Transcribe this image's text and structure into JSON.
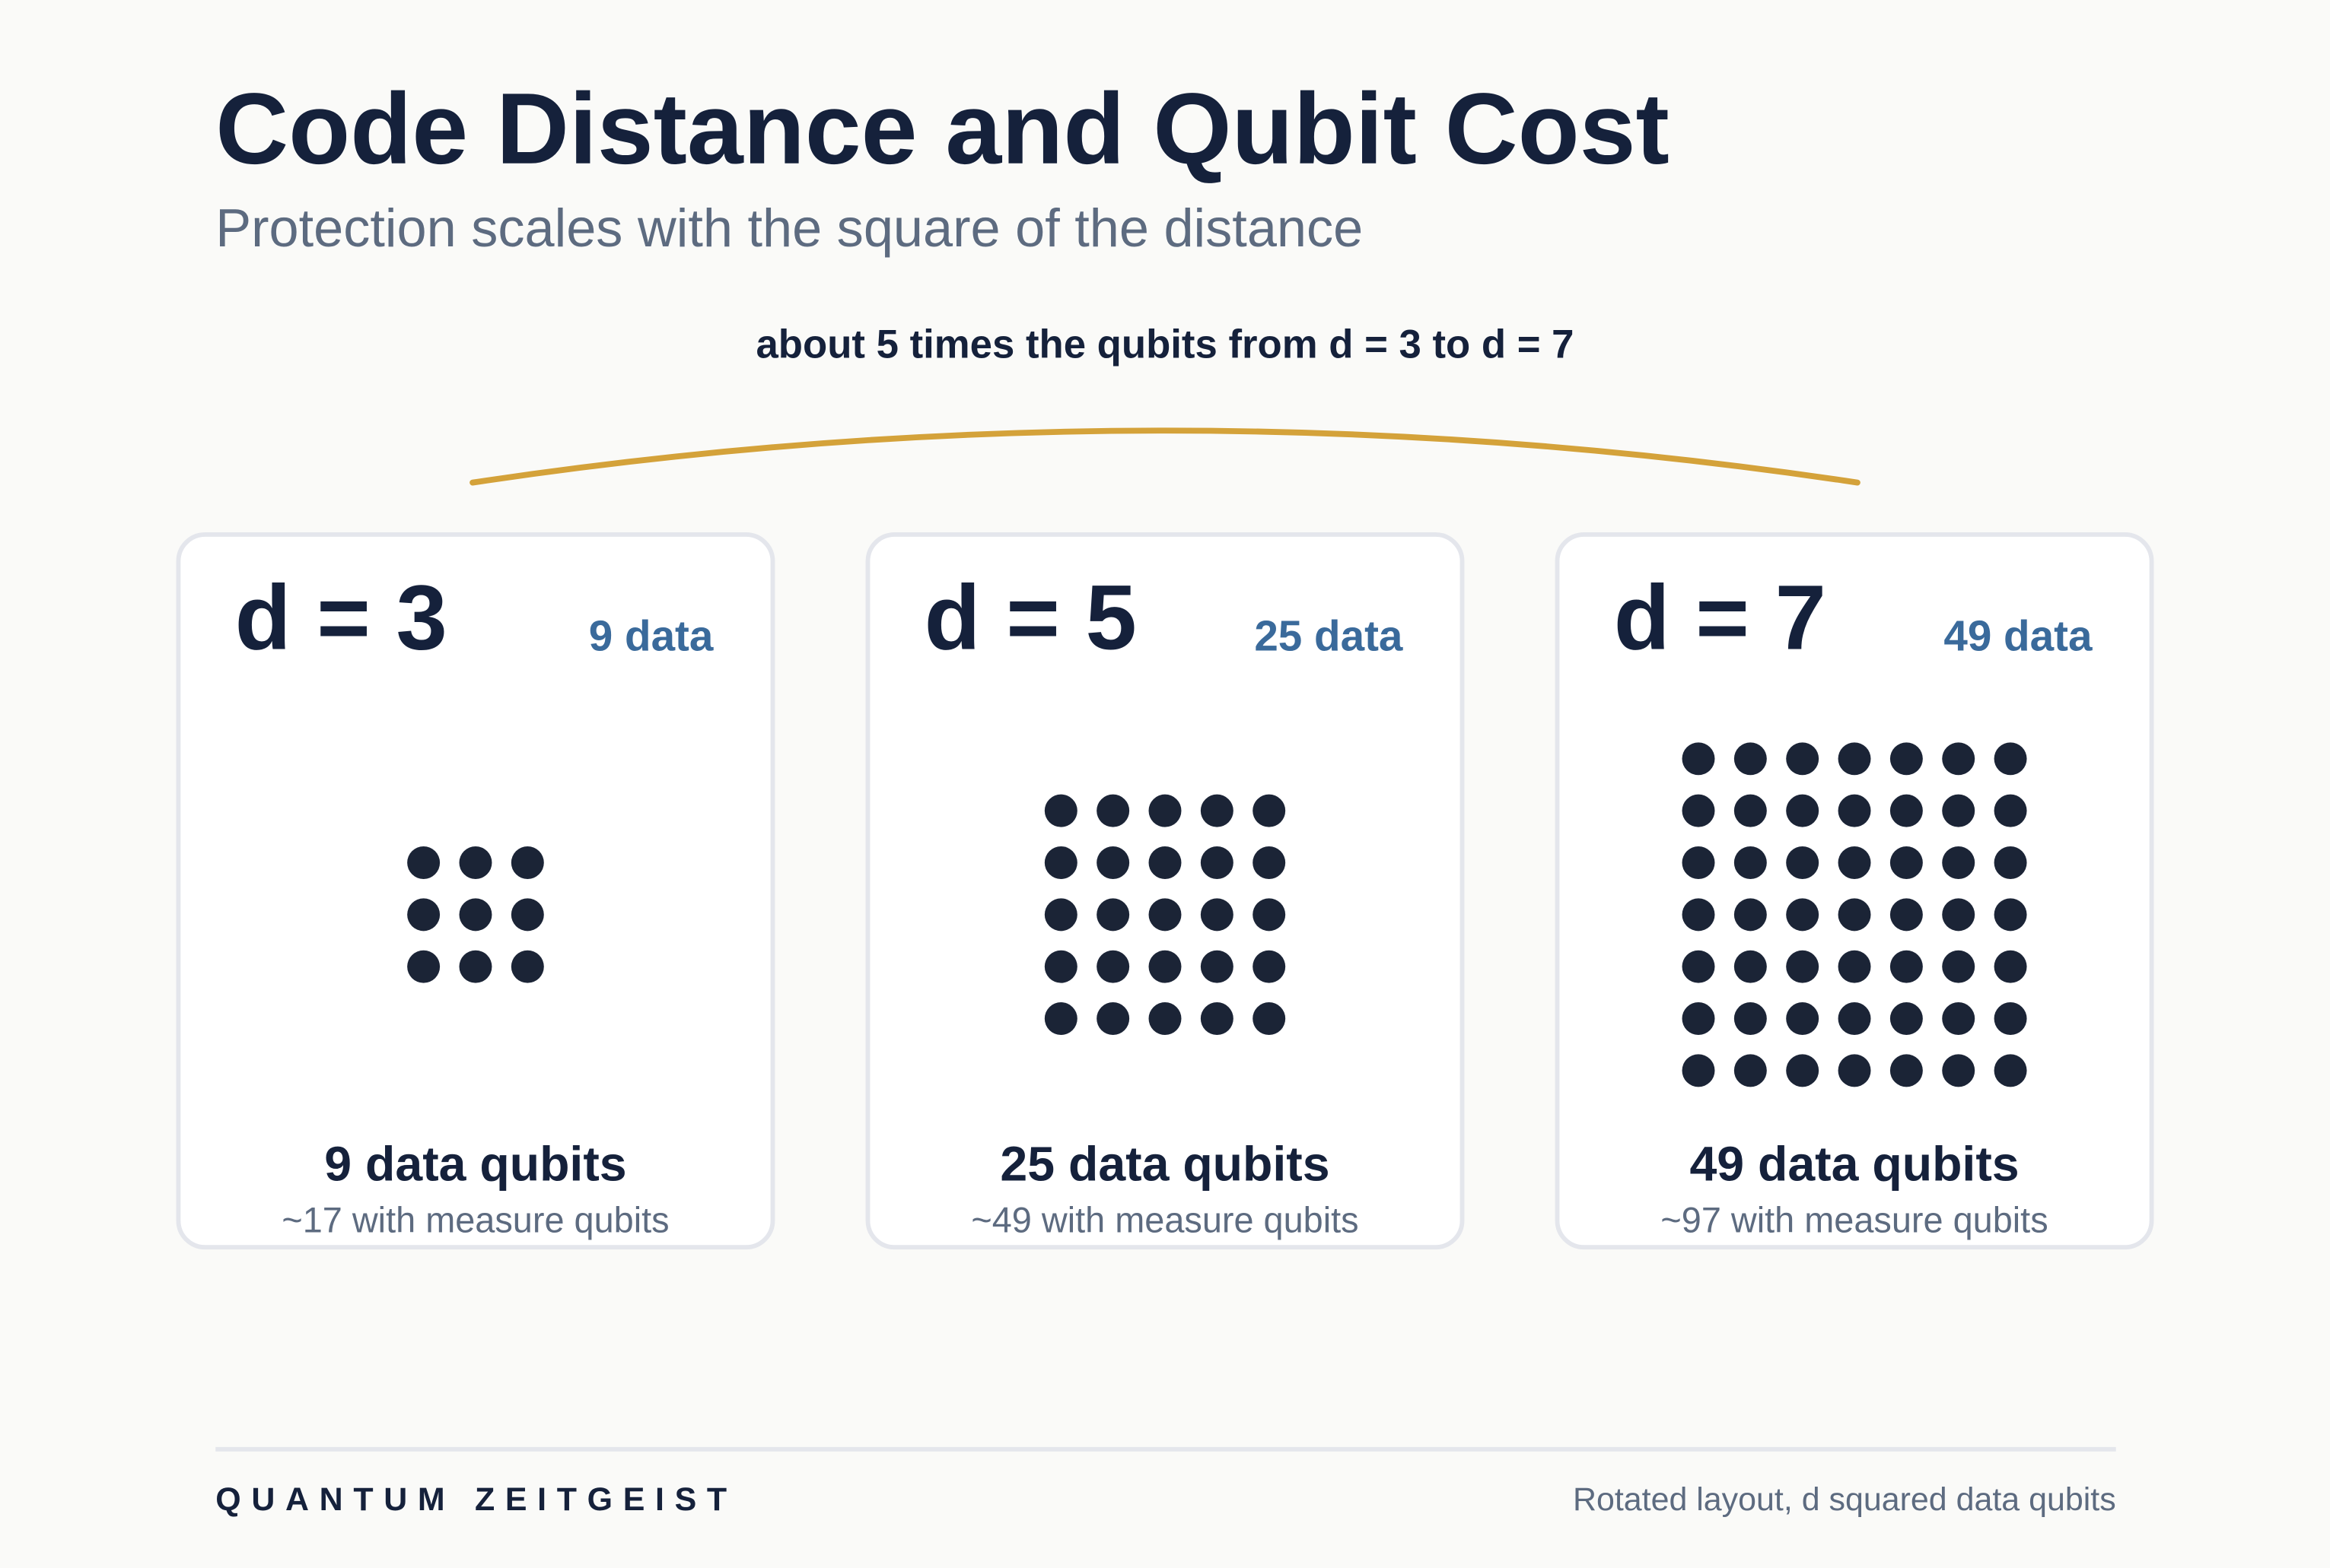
{
  "header": {
    "title": "Code Distance and Qubit Cost",
    "subtitle": "Protection scales with the square of the distance"
  },
  "annotation": "about 5 times the qubits from d = 3 to d = 7",
  "cards": [
    {
      "label": "d = 3",
      "badge": "9 data",
      "count": "9 data qubits",
      "note": "~17 with measure qubits"
    },
    {
      "label": "d = 5",
      "badge": "25 data",
      "count": "25 data qubits",
      "note": "~49 with measure qubits"
    },
    {
      "label": "d = 7",
      "badge": "49 data",
      "count": "49 data qubits",
      "note": "~97 with measure qubits"
    }
  ],
  "footer": {
    "brand": "QUANTUM ZEITGEIST",
    "note": "Rotated layout, d squared data qubits"
  }
}
